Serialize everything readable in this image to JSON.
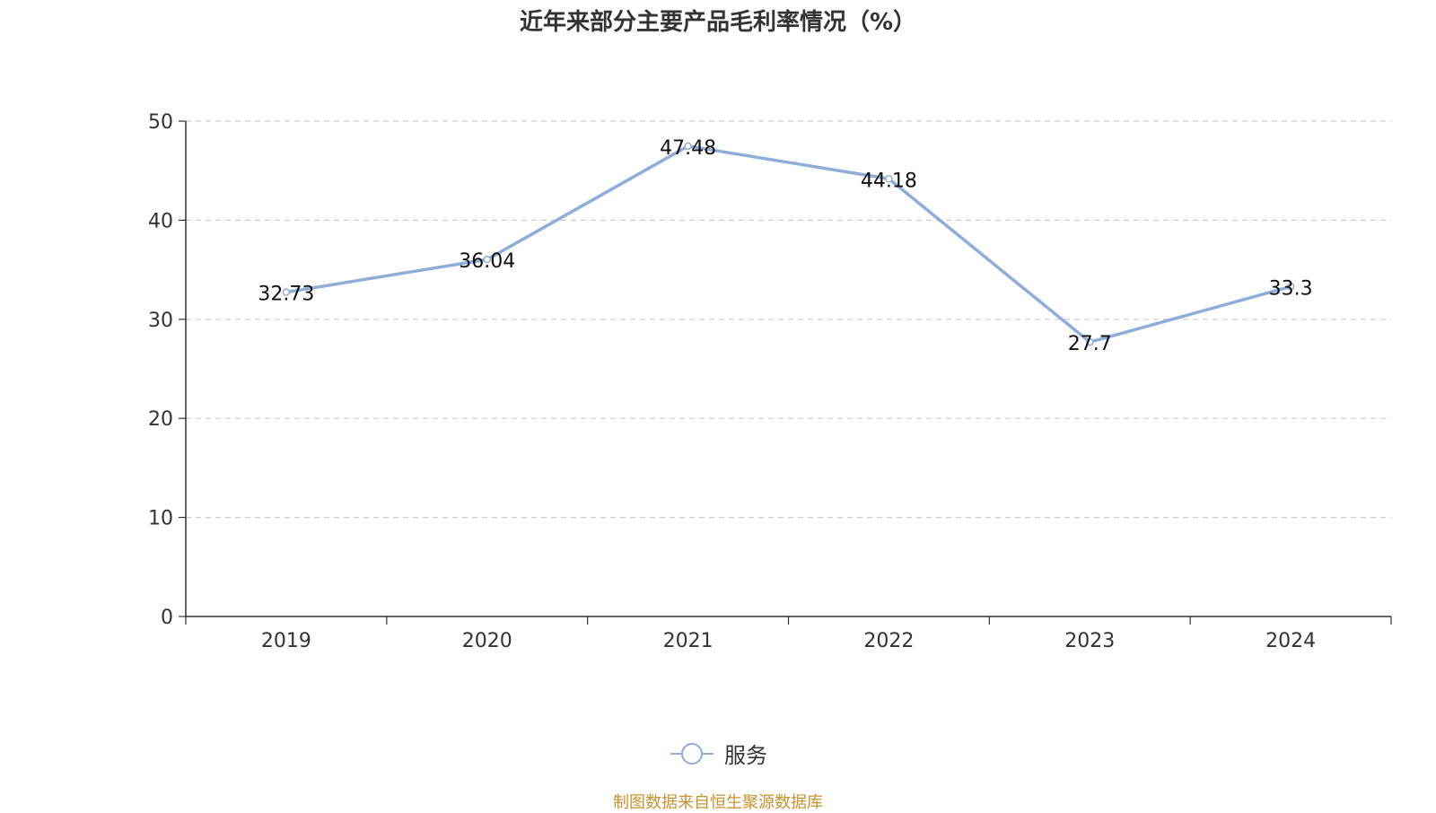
{
  "chart_data": {
    "type": "line",
    "title": "近年来部分主要产品毛利率情况（%）",
    "categories": [
      "2019",
      "2020",
      "2021",
      "2022",
      "2023",
      "2024"
    ],
    "series": [
      {
        "name": "服务",
        "values": [
          32.73,
          36.04,
          47.48,
          44.18,
          27.7,
          33.3
        ],
        "data_labels": [
          "32.73",
          "36.04",
          "47.48",
          "44.18",
          "27.7",
          "33.3"
        ],
        "color": "#8eadd9"
      }
    ],
    "ylim": [
      0,
      50
    ],
    "yticks": [
      0,
      10,
      20,
      30,
      40,
      50
    ],
    "grid": true,
    "legend_position": "bottom-center"
  },
  "source_note": "制图数据来自恒生聚源数据库",
  "colors": {
    "axis": "#333333",
    "grid": "#cccccc",
    "source": "#c8912e"
  }
}
